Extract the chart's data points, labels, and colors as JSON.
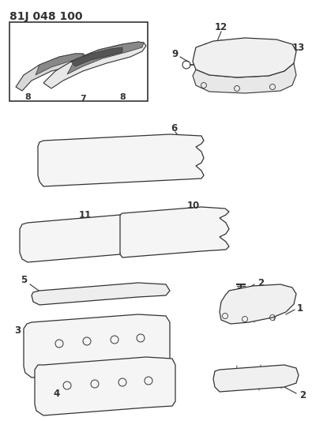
{
  "title": "81J 048 100",
  "bg_color": "#ffffff",
  "line_color": "#333333",
  "title_fontsize": 10,
  "label_fontsize": 8.5,
  "figsize": [
    3.95,
    5.33
  ],
  "dpi": 100
}
